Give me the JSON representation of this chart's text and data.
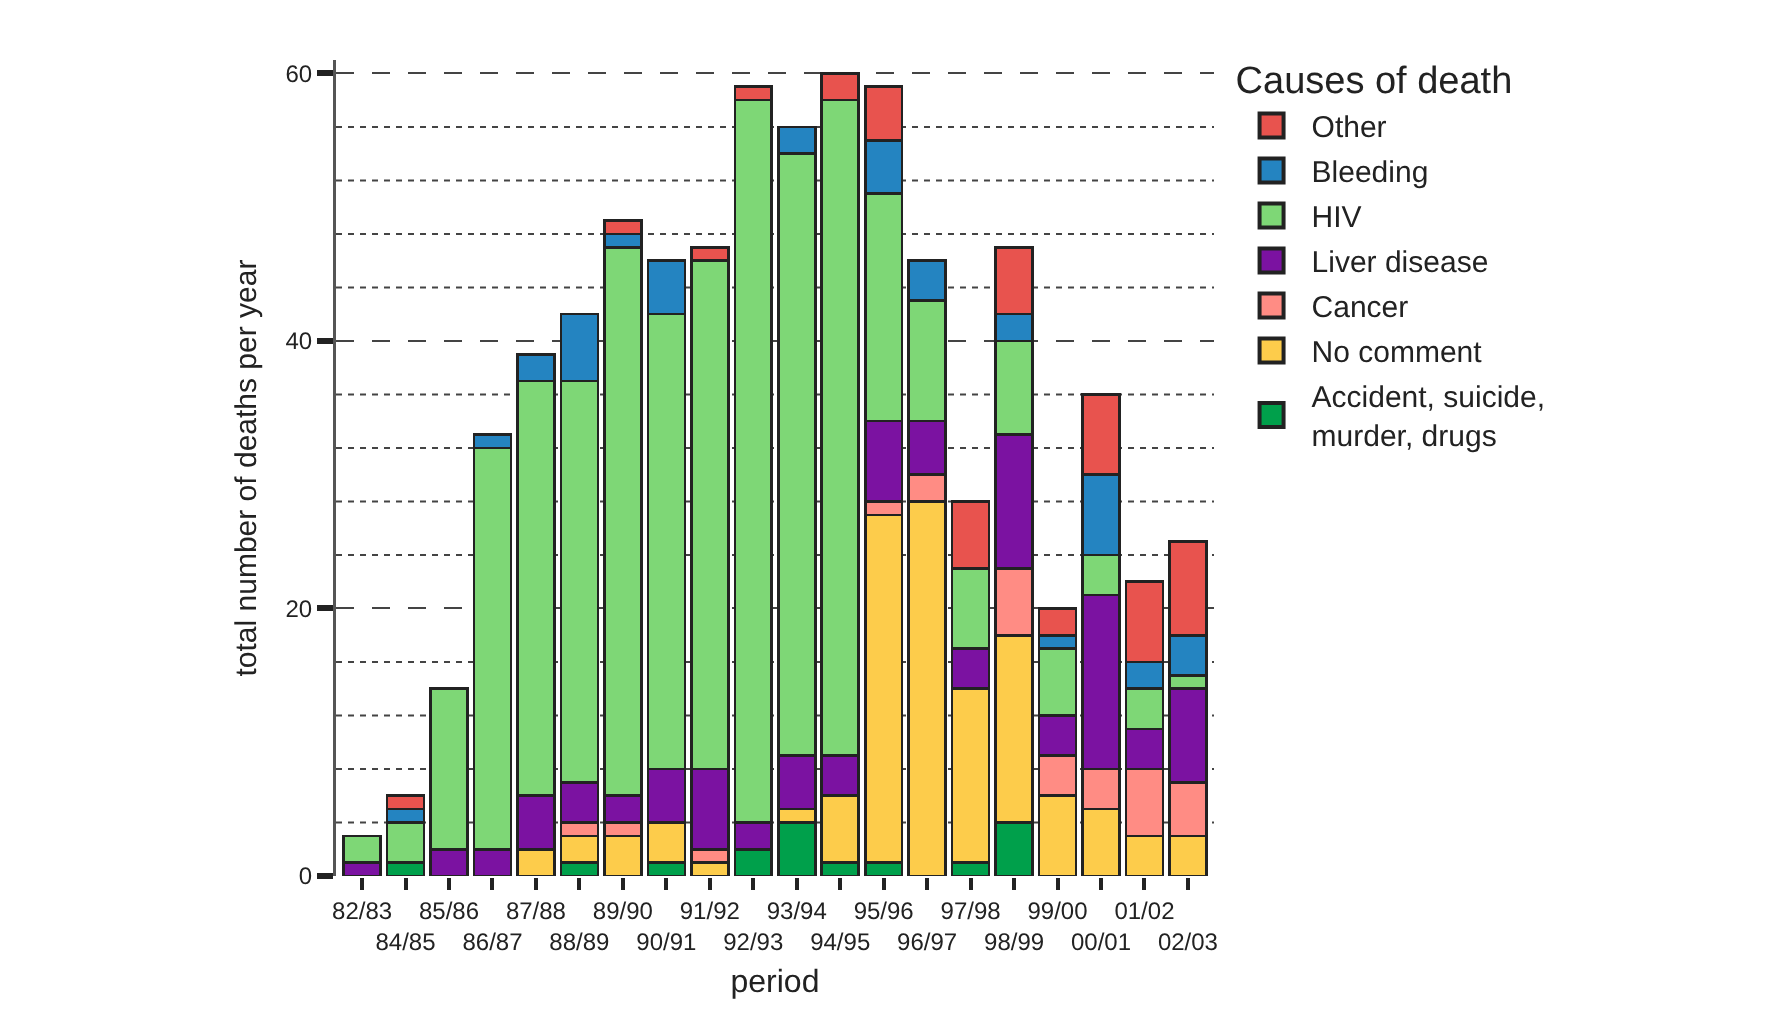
{
  "chart_data": {
    "type": "bar",
    "stacked": true,
    "xlabel": "period",
    "ylabel": "total number of deaths per year",
    "legend_title": "Causes of death",
    "legend": "right",
    "grid": "y",
    "categories": [
      "82/83",
      "84/85",
      "85/86",
      "86/87",
      "87/88",
      "88/89",
      "89/90",
      "90/91",
      "91/92",
      "92/93",
      "93/94",
      "94/95",
      "95/96",
      "96/97",
      "97/98",
      "98/99",
      "99/00",
      "00/01",
      "01/02",
      "02/03"
    ],
    "ylim": [
      0,
      61
    ],
    "yticks": [
      0,
      {
        "value": 4,
        "label": null
      },
      {
        "value": 8,
        "label": null
      },
      {
        "value": 12,
        "label": null
      },
      {
        "value": 16,
        "label": null
      },
      20,
      {
        "value": 24,
        "label": null
      },
      {
        "value": 28,
        "label": null
      },
      {
        "value": 32,
        "label": null
      },
      {
        "value": 36,
        "label": null
      },
      40,
      {
        "value": 44,
        "label": null
      },
      {
        "value": 48,
        "label": null
      },
      {
        "value": 52,
        "label": null
      },
      {
        "value": 56,
        "label": null
      },
      60
    ],
    "series": [
      {
        "name": "Accident, suicide, murder, drugs",
        "color": "#00a04b",
        "values": [
          0,
          1,
          0,
          0,
          0,
          1,
          0,
          1,
          0,
          2,
          4,
          1,
          1,
          0,
          1,
          4,
          0,
          0,
          0,
          0
        ]
      },
      {
        "name": "No comment",
        "color": "#fdcc4b",
        "values": [
          0,
          0,
          0,
          0,
          2,
          2,
          3,
          3,
          1,
          0,
          1,
          5,
          26,
          28,
          13,
          14,
          6,
          5,
          3,
          3
        ]
      },
      {
        "name": "Cancer",
        "color": "#ff8c84",
        "values": [
          0,
          0,
          0,
          0,
          0,
          1,
          1,
          0,
          1,
          0,
          0,
          0,
          1,
          2,
          0,
          5,
          3,
          3,
          5,
          4
        ]
      },
      {
        "name": "Liver disease",
        "color": "#7b12a1",
        "values": [
          1,
          0,
          2,
          2,
          4,
          3,
          2,
          4,
          6,
          2,
          4,
          3,
          6,
          4,
          3,
          10,
          3,
          13,
          3,
          7
        ]
      },
      {
        "name": "HIV",
        "color": "#7ed776",
        "values": [
          2,
          3,
          12,
          30,
          31,
          30,
          41,
          34,
          38,
          54,
          45,
          49,
          17,
          9,
          6,
          7,
          5,
          3,
          3,
          1
        ]
      },
      {
        "name": "Bleeding",
        "color": "#2484c1",
        "values": [
          0,
          1,
          0,
          1,
          2,
          5,
          1,
          4,
          0,
          0,
          2,
          0,
          4,
          3,
          0,
          2,
          1,
          6,
          2,
          3
        ]
      },
      {
        "name": "Other",
        "color": "#e8534e",
        "values": [
          0,
          1,
          0,
          0,
          0,
          0,
          1,
          0,
          1,
          1,
          0,
          2,
          4,
          0,
          5,
          5,
          2,
          6,
          6,
          7
        ]
      }
    ]
  }
}
